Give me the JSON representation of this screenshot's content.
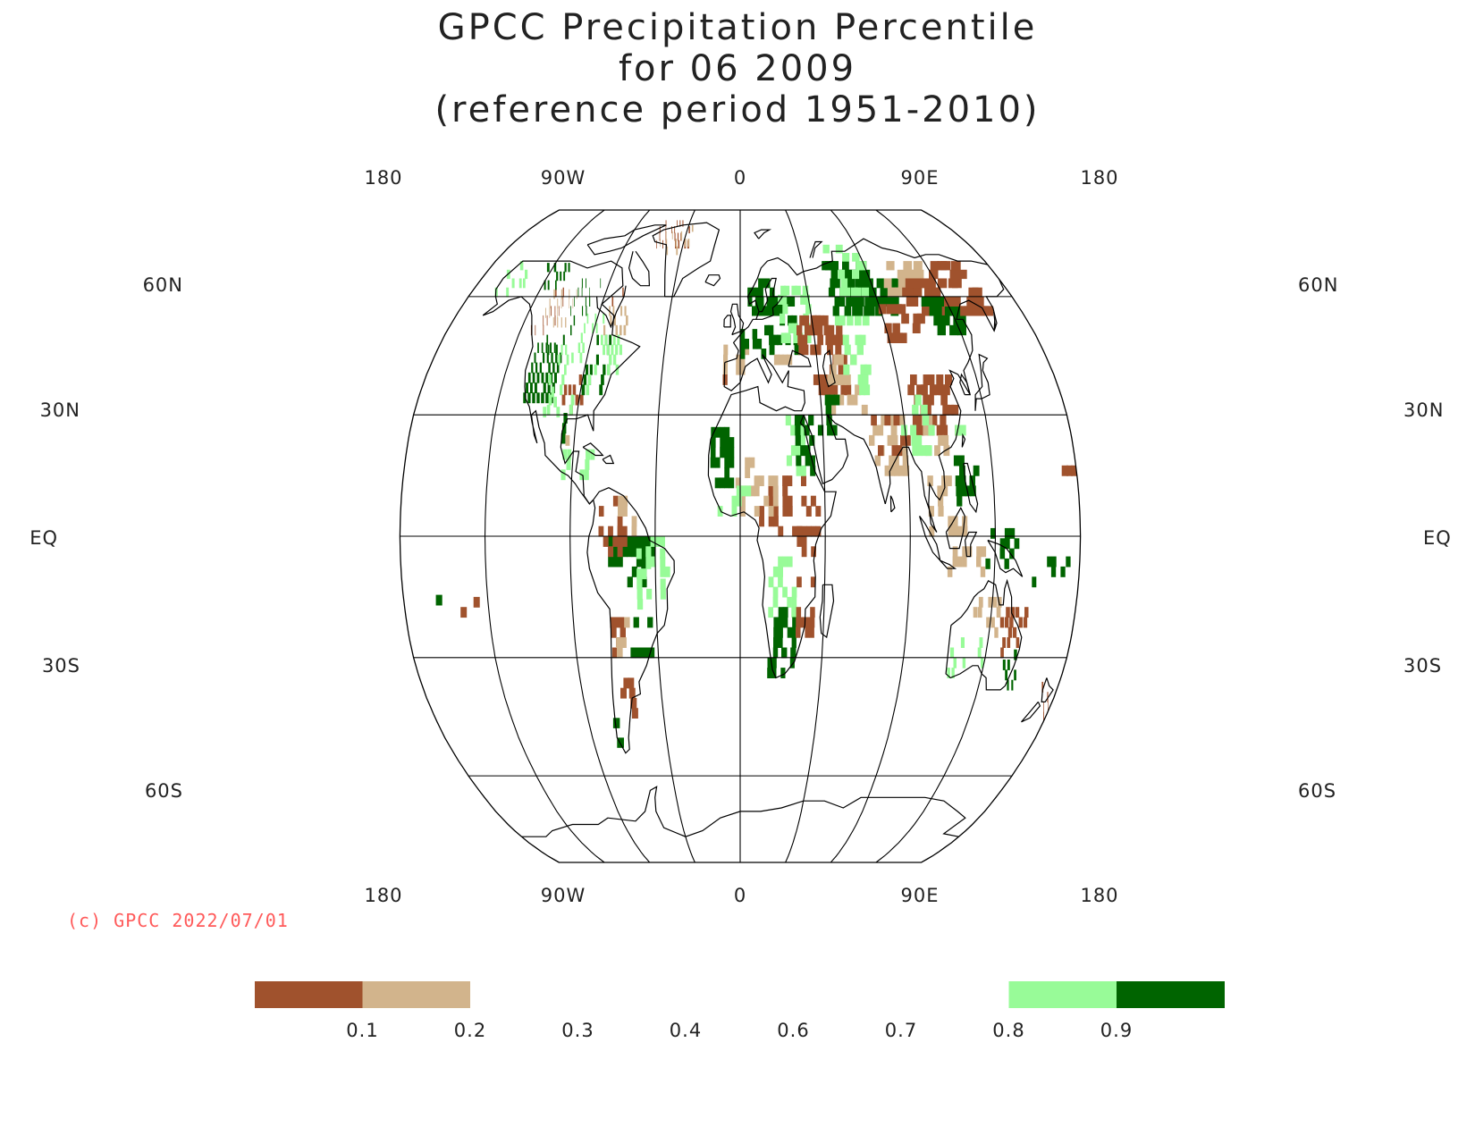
{
  "title": {
    "line1": "GPCC Precipitation Percentile",
    "line2": "for 06 2009",
    "line3": "(reference period 1951-2010)"
  },
  "map": {
    "projection": "robinson",
    "lon_labels_top": [
      "180",
      "90W",
      "0",
      "90E",
      "180"
    ],
    "lon_labels_bottom": [
      "180",
      "90W",
      "0",
      "90E",
      "180"
    ],
    "lat_labels_left": [
      "60N",
      "30N",
      "EQ",
      "30S",
      "60S"
    ],
    "lat_labels_right": [
      "60N",
      "30N",
      "EQ",
      "30S",
      "60S"
    ]
  },
  "copyright": "(c) GPCC 2022/07/01",
  "legend": {
    "colors": [
      "#a0522d",
      "#d2b48c",
      "#ffffff",
      "#ffffff",
      "#ffffff",
      "#ffffff",
      "#ffffff",
      "#98fb98",
      "#006400"
    ],
    "ticks": [
      "0.1",
      "0.2",
      "0.3",
      "0.4",
      "0.6",
      "0.7",
      "0.8",
      "0.9"
    ]
  },
  "colors": {
    "very_dry": "#a0522d",
    "dry": "#d2b48c",
    "wet": "#98fb98",
    "very_wet": "#006400"
  }
}
